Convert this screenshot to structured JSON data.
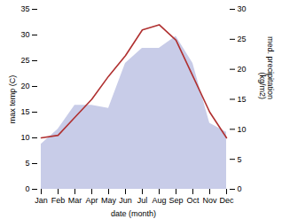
{
  "chart_data": {
    "type": "line",
    "xlabel": "date (month)",
    "ylabel": "max temp (C)",
    "y2label": "med. precipitation\n(kg/m2)",
    "categories": [
      "Jan",
      "Feb",
      "Mar",
      "Apr",
      "May",
      "Jun",
      "Jul",
      "Aug",
      "Sep",
      "Oct",
      "Nov",
      "Dec"
    ],
    "series": [
      {
        "type": "area",
        "axis": "y2",
        "color": "#c8cce8",
        "values": [
          7.5,
          10.0,
          14.0,
          14.0,
          13.5,
          21.0,
          23.5,
          23.5,
          25.5,
          21.0,
          11.0,
          9.5
        ]
      },
      {
        "type": "line",
        "color": "#b03030",
        "values": [
          10.0,
          10.5,
          14.0,
          17.5,
          22.0,
          26.0,
          31.0,
          32.0,
          29.0,
          22.0,
          15.0,
          10.0
        ]
      }
    ],
    "ylim": [
      0,
      35
    ],
    "yticks": [
      0,
      5,
      10,
      15,
      20,
      25,
      30,
      35
    ],
    "y2lim": [
      0,
      30
    ],
    "y2ticks": [
      0,
      5,
      10,
      15,
      20,
      25,
      30
    ],
    "grid": false
  }
}
